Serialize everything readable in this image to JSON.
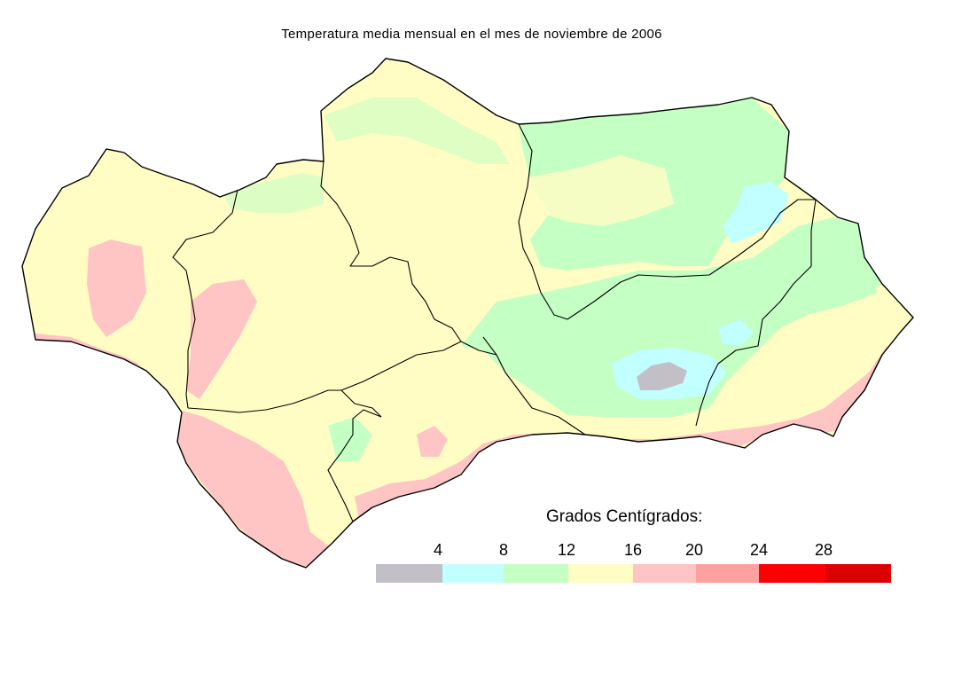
{
  "title": "Temperatura media mensual en el mes de noviembre de 2006",
  "legend": {
    "title": "Grados Centígrados:",
    "ticks": [
      "4",
      "8",
      "12",
      "16",
      "20",
      "24",
      "28"
    ],
    "classes": [
      {
        "range": "< 4",
        "color": "#c3bfc7"
      },
      {
        "range": "4 - 8",
        "color": "#c2ffff"
      },
      {
        "range": "8 - 12",
        "color": "#c4ffc4"
      },
      {
        "range": "12 - 16",
        "color": "#fffdc4"
      },
      {
        "range": "16 - 20",
        "color": "#ffc4c4"
      },
      {
        "range": "20 - 24",
        "color": "#ffa0a0"
      },
      {
        "range": "24 - 28",
        "color": "#ff0000"
      },
      {
        "range": "> 28",
        "color": "#dd0000"
      }
    ]
  },
  "colors": {
    "boundary": "#000000",
    "background": "#ffffff"
  }
}
